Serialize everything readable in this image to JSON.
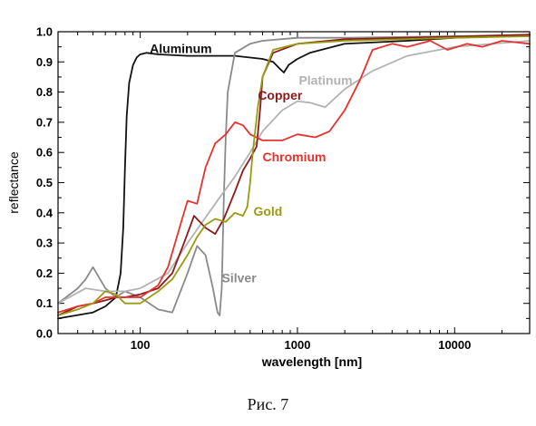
{
  "chart_data": {
    "type": "line",
    "xscale": "log",
    "xlim": [
      30,
      30000
    ],
    "ylim": [
      0.0,
      1.0
    ],
    "xlabel": "wavelength [nm]",
    "ylabel": "reflectance",
    "xticklabels": [
      {
        "value": 100,
        "label": "100"
      },
      {
        "value": 1000,
        "label": "1000"
      },
      {
        "value": 10000,
        "label": "10000"
      }
    ],
    "yticklabels": [
      {
        "value": 0.0,
        "label": "0.0"
      },
      {
        "value": 0.1,
        "label": "0.1"
      },
      {
        "value": 0.2,
        "label": "0.2"
      },
      {
        "value": 0.3,
        "label": "0.3"
      },
      {
        "value": 0.4,
        "label": "0.4"
      },
      {
        "value": 0.5,
        "label": "0.5"
      },
      {
        "value": 0.6,
        "label": "0.6"
      },
      {
        "value": 0.7,
        "label": "0.7"
      },
      {
        "value": 0.8,
        "label": "0.8"
      },
      {
        "value": 0.9,
        "label": "0.9"
      },
      {
        "value": 1.0,
        "label": "1.0"
      }
    ],
    "series": [
      {
        "name": "Aluminum",
        "color": "#111111",
        "label_at": {
          "x": 115,
          "y": 0.945
        },
        "x": [
          30,
          50,
          60,
          70,
          75,
          78,
          80,
          82,
          85,
          90,
          95,
          100,
          110,
          130,
          200,
          400,
          600,
          700,
          780,
          820,
          880,
          1000,
          1200,
          2000,
          5000,
          10000,
          30000
        ],
        "y": [
          0.05,
          0.07,
          0.09,
          0.12,
          0.2,
          0.35,
          0.55,
          0.72,
          0.83,
          0.89,
          0.915,
          0.925,
          0.93,
          0.925,
          0.92,
          0.92,
          0.91,
          0.9,
          0.875,
          0.865,
          0.89,
          0.91,
          0.93,
          0.96,
          0.97,
          0.98,
          0.99
        ]
      },
      {
        "name": "Silver",
        "color": "#8a8a8a",
        "label_at": {
          "x": 330,
          "y": 0.185
        },
        "x": [
          30,
          40,
          45,
          50,
          60,
          70,
          80,
          100,
          130,
          160,
          200,
          230,
          260,
          290,
          310,
          320,
          330,
          340,
          350,
          360,
          400,
          500,
          600,
          1000,
          2000,
          10000,
          30000
        ],
        "y": [
          0.1,
          0.15,
          0.18,
          0.22,
          0.15,
          0.12,
          0.14,
          0.12,
          0.08,
          0.07,
          0.2,
          0.29,
          0.26,
          0.15,
          0.07,
          0.06,
          0.15,
          0.45,
          0.65,
          0.8,
          0.93,
          0.96,
          0.97,
          0.98,
          0.98,
          0.985,
          0.99
        ]
      },
      {
        "name": "Platinum",
        "color": "#b3b3b3",
        "label_at": {
          "x": 1020,
          "y": 0.84
        },
        "x": [
          30,
          45,
          60,
          80,
          100,
          150,
          200,
          300,
          400,
          500,
          600,
          800,
          1000,
          1200,
          1500,
          2000,
          3000,
          5000,
          10000,
          30000
        ],
        "y": [
          0.1,
          0.15,
          0.14,
          0.14,
          0.15,
          0.2,
          0.3,
          0.43,
          0.52,
          0.6,
          0.67,
          0.74,
          0.77,
          0.765,
          0.75,
          0.81,
          0.87,
          0.92,
          0.95,
          0.97
        ]
      },
      {
        "name": "Copper",
        "color": "#8b1a1a",
        "label_at": {
          "x": 560,
          "y": 0.79
        },
        "x": [
          30,
          40,
          50,
          60,
          70,
          80,
          100,
          130,
          160,
          190,
          220,
          260,
          300,
          340,
          400,
          450,
          500,
          550,
          580,
          600,
          700,
          1000,
          2000,
          5000,
          30000
        ],
        "y": [
          0.06,
          0.09,
          0.1,
          0.11,
          0.12,
          0.12,
          0.13,
          0.15,
          0.2,
          0.3,
          0.39,
          0.35,
          0.33,
          0.38,
          0.47,
          0.54,
          0.58,
          0.62,
          0.75,
          0.85,
          0.93,
          0.96,
          0.975,
          0.98,
          0.99
        ]
      },
      {
        "name": "Chromium",
        "color": "#e8322d",
        "label_at": {
          "x": 600,
          "y": 0.585
        },
        "x": [
          30,
          40,
          50,
          60,
          80,
          100,
          130,
          150,
          180,
          200,
          230,
          260,
          300,
          350,
          400,
          450,
          500,
          600,
          800,
          1000,
          1300,
          1600,
          2000,
          2500,
          3000,
          4000,
          5000,
          7000,
          9000,
          12000,
          15000,
          20000,
          30000
        ],
        "y": [
          0.07,
          0.09,
          0.1,
          0.12,
          0.12,
          0.12,
          0.16,
          0.22,
          0.36,
          0.44,
          0.43,
          0.55,
          0.63,
          0.66,
          0.7,
          0.69,
          0.66,
          0.64,
          0.64,
          0.66,
          0.65,
          0.67,
          0.74,
          0.84,
          0.94,
          0.96,
          0.95,
          0.97,
          0.94,
          0.96,
          0.95,
          0.97,
          0.96
        ]
      },
      {
        "name": "Gold",
        "color": "#9a9a12",
        "label_at": {
          "x": 525,
          "y": 0.405
        },
        "x": [
          30,
          40,
          50,
          60,
          70,
          80,
          100,
          130,
          160,
          200,
          230,
          260,
          300,
          350,
          400,
          450,
          480,
          500,
          520,
          560,
          600,
          700,
          1000,
          2000,
          10000,
          30000
        ],
        "y": [
          0.06,
          0.08,
          0.1,
          0.14,
          0.13,
          0.1,
          0.1,
          0.14,
          0.18,
          0.26,
          0.32,
          0.36,
          0.38,
          0.37,
          0.4,
          0.39,
          0.42,
          0.5,
          0.6,
          0.75,
          0.85,
          0.94,
          0.96,
          0.97,
          0.98,
          0.985
        ]
      }
    ]
  },
  "caption": "Рис. 7"
}
